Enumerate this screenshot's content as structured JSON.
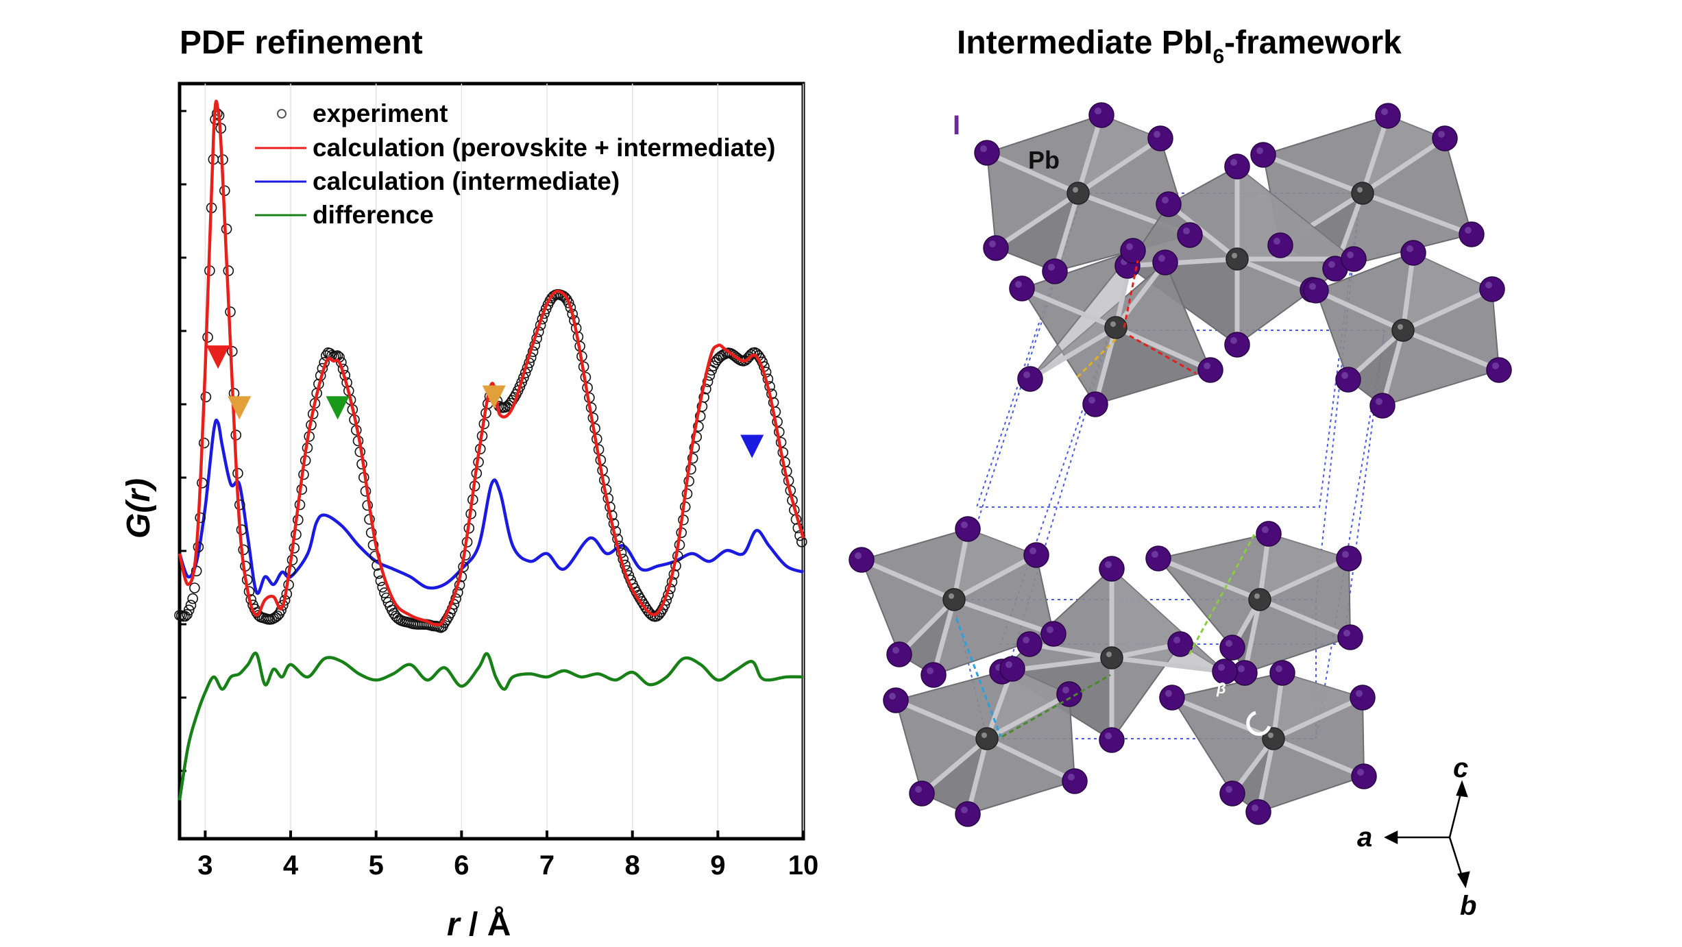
{
  "chart_data": {
    "type": "line",
    "title": "PDF refinement",
    "xlabel_main": "r",
    "xlabel_unit": " / Å",
    "ylabel_main": "G",
    "ylabel_arg": "(r)",
    "xlim": [
      2.7,
      10
    ],
    "x_ticks": [
      "3",
      "4",
      "5",
      "6",
      "7",
      "8",
      "9",
      "10"
    ],
    "legend": {
      "placement": "top-right",
      "entries": [
        {
          "label": "experiment",
          "style": "open-circle",
          "color": "#000000"
        },
        {
          "label": "calculation (perovskite + intermediate)",
          "style": "line",
          "color": "#e8201c"
        },
        {
          "label": "calculation (intermediate)",
          "style": "line",
          "color": "#1a1ae0"
        },
        {
          "label": "difference",
          "style": "line",
          "color": "#178017"
        }
      ]
    },
    "series": [
      {
        "key": "experiment",
        "color": "#000000",
        "x": [
          2.7,
          2.8,
          2.9,
          3.0,
          3.1,
          3.15,
          3.2,
          3.3,
          3.4,
          3.5,
          3.6,
          3.7,
          3.8,
          3.9,
          4.0,
          4.2,
          4.4,
          4.5,
          4.6,
          4.8,
          5.0,
          5.2,
          5.4,
          5.6,
          5.7,
          5.8,
          6.0,
          6.2,
          6.35,
          6.45,
          6.6,
          6.8,
          7.0,
          7.15,
          7.3,
          7.5,
          7.7,
          7.9,
          8.1,
          8.3,
          8.5,
          8.7,
          8.9,
          9.1,
          9.3,
          9.45,
          9.6,
          9.8,
          10.0
        ],
        "y": [
          0.1,
          0.12,
          0.4,
          1.4,
          3.1,
          3.35,
          3.1,
          2.0,
          0.85,
          0.3,
          0.12,
          0.08,
          0.08,
          0.15,
          0.4,
          1.2,
          1.75,
          1.78,
          1.72,
          1.2,
          0.45,
          0.12,
          0.05,
          0.04,
          0.03,
          0.05,
          0.35,
          1.1,
          1.55,
          1.45,
          1.5,
          1.75,
          2.1,
          2.18,
          2.05,
          1.5,
          0.9,
          0.45,
          0.2,
          0.1,
          0.4,
          1.1,
          1.65,
          1.8,
          1.75,
          1.8,
          1.6,
          1.05,
          0.55
        ]
      },
      {
        "key": "calculation (perovskite + intermediate)",
        "color": "#e8201c",
        "x": [
          2.7,
          2.8,
          2.9,
          3.0,
          3.1,
          3.15,
          3.2,
          3.3,
          3.4,
          3.5,
          3.6,
          3.7,
          3.8,
          3.9,
          4.0,
          4.2,
          4.4,
          4.5,
          4.6,
          4.8,
          5.0,
          5.2,
          5.4,
          5.6,
          5.7,
          5.8,
          6.0,
          6.2,
          6.35,
          6.45,
          6.6,
          6.8,
          7.0,
          7.15,
          7.3,
          7.5,
          7.7,
          7.9,
          8.1,
          8.3,
          8.5,
          8.7,
          8.9,
          9.0,
          9.1,
          9.3,
          9.45,
          9.6,
          9.8,
          10.0
        ],
        "y": [
          0.5,
          0.3,
          0.55,
          1.7,
          3.25,
          3.38,
          3.0,
          1.8,
          0.7,
          0.25,
          0.1,
          0.2,
          0.22,
          0.15,
          0.45,
          1.25,
          1.72,
          1.75,
          1.7,
          1.25,
          0.55,
          0.2,
          0.1,
          0.06,
          0.04,
          0.08,
          0.4,
          1.15,
          1.6,
          1.4,
          1.45,
          1.8,
          2.12,
          2.2,
          2.05,
          1.45,
          0.85,
          0.4,
          0.18,
          0.12,
          0.45,
          1.2,
          1.75,
          1.85,
          1.82,
          1.75,
          1.78,
          1.55,
          1.0,
          0.6
        ]
      },
      {
        "key": "calculation (intermediate)",
        "color": "#1a1ae0",
        "x": [
          2.7,
          2.8,
          2.9,
          3.0,
          3.1,
          3.15,
          3.2,
          3.3,
          3.4,
          3.5,
          3.6,
          3.7,
          3.8,
          3.9,
          4.0,
          4.2,
          4.3,
          4.4,
          4.6,
          4.8,
          5.0,
          5.2,
          5.4,
          5.6,
          5.8,
          6.0,
          6.2,
          6.35,
          6.45,
          6.6,
          6.8,
          7.0,
          7.2,
          7.5,
          7.7,
          7.9,
          8.1,
          8.3,
          8.5,
          8.7,
          8.9,
          9.1,
          9.3,
          9.45,
          9.6,
          9.8,
          10.0
        ],
        "y": [
          0.5,
          0.35,
          0.45,
          0.8,
          1.3,
          1.35,
          1.2,
          0.95,
          0.95,
          0.6,
          0.25,
          0.35,
          0.3,
          0.38,
          0.35,
          0.5,
          0.7,
          0.75,
          0.68,
          0.55,
          0.45,
          0.4,
          0.35,
          0.28,
          0.3,
          0.4,
          0.55,
          0.95,
          0.9,
          0.55,
          0.45,
          0.5,
          0.4,
          0.6,
          0.5,
          0.55,
          0.4,
          0.42,
          0.45,
          0.5,
          0.45,
          0.52,
          0.5,
          0.65,
          0.55,
          0.42,
          0.38
        ]
      },
      {
        "key": "difference",
        "color": "#178017",
        "x": [
          2.7,
          2.8,
          2.9,
          3.0,
          3.1,
          3.2,
          3.3,
          3.4,
          3.5,
          3.6,
          3.7,
          3.8,
          3.9,
          4.0,
          4.2,
          4.4,
          4.6,
          4.8,
          5.0,
          5.2,
          5.4,
          5.6,
          5.8,
          6.0,
          6.2,
          6.3,
          6.4,
          6.5,
          6.6,
          6.8,
          7.0,
          7.2,
          7.4,
          7.6,
          7.8,
          8.0,
          8.2,
          8.4,
          8.6,
          8.8,
          9.0,
          9.2,
          9.4,
          9.5,
          9.6,
          9.8,
          10.0
        ],
        "y": [
          -1.1,
          -0.75,
          -0.55,
          -0.4,
          -0.3,
          -0.38,
          -0.3,
          -0.28,
          -0.22,
          -0.15,
          -0.35,
          -0.25,
          -0.3,
          -0.22,
          -0.3,
          -0.18,
          -0.2,
          -0.28,
          -0.32,
          -0.28,
          -0.22,
          -0.32,
          -0.24,
          -0.36,
          -0.24,
          -0.15,
          -0.3,
          -0.38,
          -0.3,
          -0.28,
          -0.3,
          -0.26,
          -0.3,
          -0.28,
          -0.32,
          -0.27,
          -0.35,
          -0.3,
          -0.18,
          -0.22,
          -0.32,
          -0.26,
          -0.2,
          -0.3,
          -0.32,
          -0.3,
          -0.3
        ]
      }
    ],
    "markers": [
      {
        "x": 3.15,
        "y": 1.78,
        "color": "#e8201c"
      },
      {
        "x": 3.4,
        "y": 1.45,
        "color": "#e2a03a"
      },
      {
        "x": 4.55,
        "y": 1.45,
        "color": "#1a9a1a"
      },
      {
        "x": 6.38,
        "y": 1.52,
        "color": "#e2a03a"
      },
      {
        "x": 9.4,
        "y": 1.2,
        "color": "#1a1ae0"
      }
    ]
  },
  "structure": {
    "title_prefix": "Intermediate PbI",
    "title_subscript": "6",
    "title_suffix": "-framework",
    "label_iodine": "I",
    "label_lead": "Pb",
    "label_beta": "β",
    "axis_c": "c",
    "axis_a": "a",
    "axis_b": "b",
    "iodine_color": "#4a0a78",
    "lead_color": "#3a3a3a",
    "octahedron_color": "#8a8a8e"
  }
}
